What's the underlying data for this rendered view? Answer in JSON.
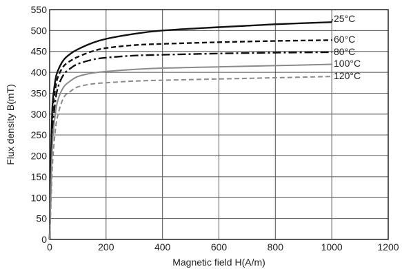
{
  "chart_data": {
    "type": "line",
    "xlabel": "Magnetic field H(A/m)",
    "ylabel": "Flux density B(mT)",
    "xlim": [
      0,
      1200
    ],
    "ylim": [
      0,
      550
    ],
    "xticks": [
      0,
      200,
      400,
      600,
      800,
      1000,
      1200
    ],
    "yticks": [
      0,
      50,
      100,
      150,
      200,
      250,
      300,
      350,
      400,
      450,
      500,
      550
    ],
    "grid": true,
    "legend": "right",
    "series": [
      {
        "name": "25°C",
        "color": "#111111",
        "dash": "solid",
        "x": [
          0,
          5,
          10,
          20,
          30,
          50,
          75,
          100,
          150,
          200,
          300,
          400,
          600,
          800,
          1000
        ],
        "y": [
          0,
          200,
          320,
          380,
          405,
          430,
          445,
          455,
          470,
          480,
          492,
          500,
          508,
          515,
          520
        ]
      },
      {
        "name": "60°C",
        "color": "#111111",
        "dash": "dashed",
        "x": [
          0,
          5,
          10,
          20,
          30,
          50,
          75,
          100,
          150,
          200,
          300,
          400,
          600,
          800,
          1000
        ],
        "y": [
          0,
          180,
          300,
          360,
          390,
          415,
          428,
          437,
          450,
          458,
          465,
          468,
          472,
          475,
          477
        ]
      },
      {
        "name": "80°C",
        "color": "#111111",
        "dash": "dashdot",
        "x": [
          0,
          5,
          10,
          20,
          30,
          50,
          75,
          100,
          150,
          200,
          300,
          400,
          600,
          800,
          1000
        ],
        "y": [
          0,
          150,
          260,
          330,
          365,
          395,
          410,
          420,
          430,
          435,
          440,
          442,
          445,
          447,
          448
        ]
      },
      {
        "name": "100°C",
        "color": "#8a8a8a",
        "dash": "solid",
        "x": [
          0,
          5,
          10,
          20,
          30,
          50,
          75,
          100,
          150,
          200,
          300,
          400,
          600,
          800,
          1000
        ],
        "y": [
          0,
          130,
          230,
          300,
          335,
          365,
          380,
          390,
          398,
          402,
          407,
          410,
          413,
          416,
          419
        ]
      },
      {
        "name": "120°C",
        "color": "#8a8a8a",
        "dash": "dashed",
        "x": [
          0,
          5,
          10,
          20,
          30,
          50,
          75,
          100,
          150,
          200,
          300,
          400,
          600,
          800,
          1000
        ],
        "y": [
          0,
          90,
          180,
          260,
          300,
          340,
          355,
          365,
          372,
          375,
          379,
          381,
          384,
          387,
          390
        ]
      }
    ]
  }
}
